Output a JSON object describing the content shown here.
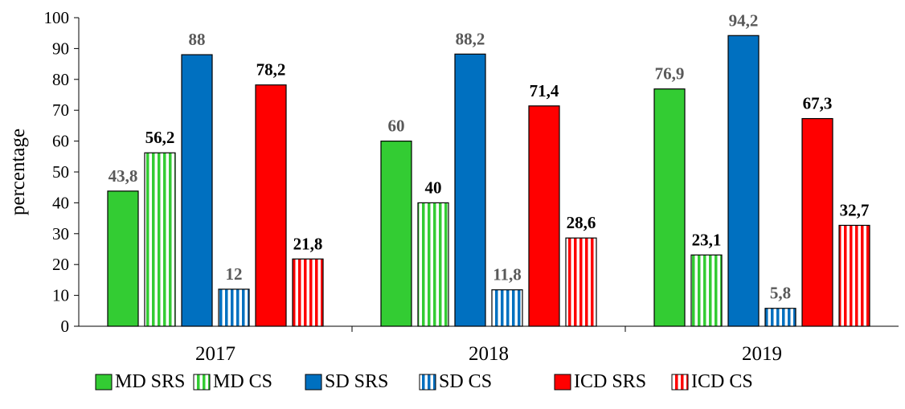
{
  "chart_data": {
    "type": "bar",
    "title": "",
    "xlabel": "",
    "ylabel": "percentage",
    "ylim": [
      0,
      100
    ],
    "yticks": [
      0,
      10,
      20,
      30,
      40,
      50,
      60,
      70,
      80,
      90,
      100
    ],
    "grid": false,
    "legend_position": "bottom",
    "categories": [
      "2017",
      "2018",
      "2019"
    ],
    "series": [
      {
        "name": "MD SRS",
        "color": "#33CC33",
        "pattern": "solid",
        "values": [
          43.8,
          60,
          76.9
        ],
        "labels": [
          "43,8",
          "60",
          "76,9"
        ],
        "label_colors": [
          "#595959",
          "#595959",
          "#595959"
        ]
      },
      {
        "name": "MD CS",
        "color": "#33CC33",
        "pattern": "stripes",
        "values": [
          56.2,
          40,
          23.1
        ],
        "labels": [
          "56,2",
          "40",
          "23,1"
        ],
        "label_colors": [
          "#000000",
          "#000000",
          "#000000"
        ]
      },
      {
        "name": "SD SRS",
        "color": "#0070C0",
        "pattern": "solid",
        "values": [
          88,
          88.2,
          94.2
        ],
        "labels": [
          "88",
          "88,2",
          "94,2"
        ],
        "label_colors": [
          "#595959",
          "#595959",
          "#595959"
        ]
      },
      {
        "name": "SD CS",
        "color": "#0070C0",
        "pattern": "stripes",
        "values": [
          12,
          11.8,
          5.8
        ],
        "labels": [
          "12",
          "11,8",
          "5,8"
        ],
        "label_colors": [
          "#595959",
          "#595959",
          "#595959"
        ]
      },
      {
        "name": "ICD SRS",
        "color": "#FF0000",
        "pattern": "solid",
        "values": [
          78.2,
          71.4,
          67.3
        ],
        "labels": [
          "78,2",
          "71,4",
          "67,3"
        ],
        "label_colors": [
          "#000000",
          "#000000",
          "#000000"
        ]
      },
      {
        "name": "ICD CS",
        "color": "#FF0000",
        "pattern": "stripes",
        "values": [
          21.8,
          28.6,
          32.7
        ],
        "labels": [
          "21,8",
          "28,6",
          "32,7"
        ],
        "label_colors": [
          "#000000",
          "#000000",
          "#000000"
        ]
      }
    ]
  }
}
